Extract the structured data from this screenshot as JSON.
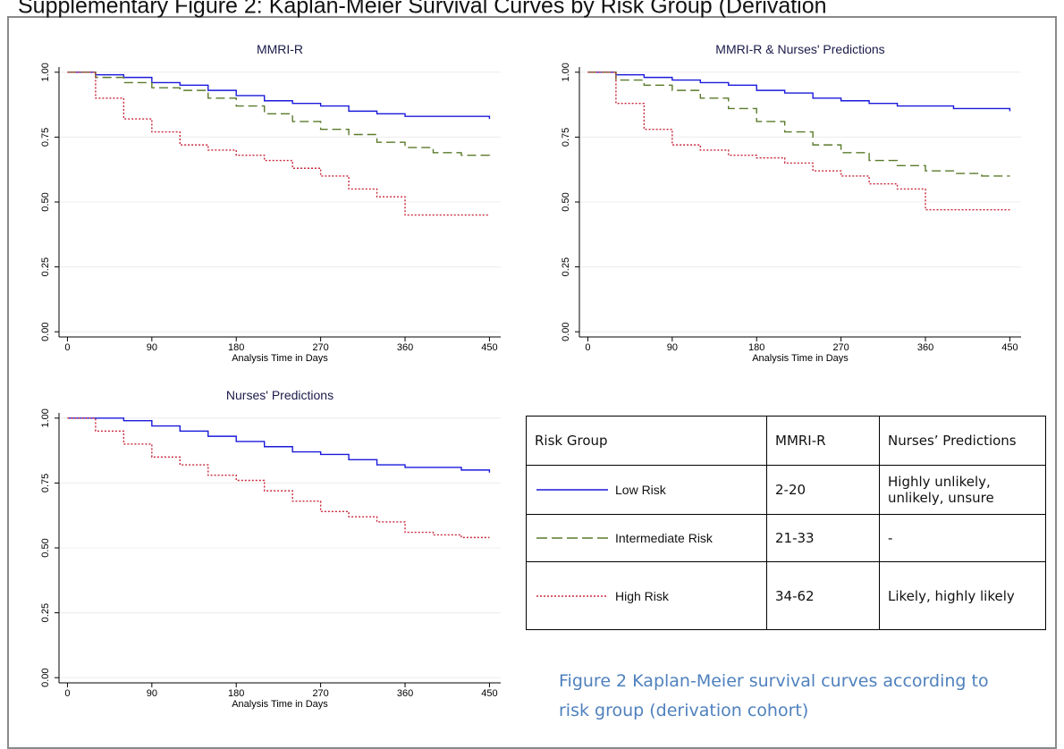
{
  "title": "Supplementary Figure 2: Kaplan-Meier Survival Curves by Risk Group (Derivation",
  "chart_data": [
    {
      "type": "line",
      "step": true,
      "title": "MMRI-R",
      "xlabel": "Analysis Time in Days",
      "x": [
        0,
        30,
        60,
        90,
        120,
        150,
        180,
        210,
        240,
        270,
        300,
        330,
        360,
        390,
        420,
        450
      ],
      "xlim": [
        -9,
        462
      ],
      "xticks": [
        0,
        90,
        180,
        270,
        360,
        450
      ],
      "ylim": [
        -0.02,
        1.02
      ],
      "yticks": [
        {
          "value": 0,
          "label": "0.00"
        },
        {
          "value": 0.25,
          "label": "0.25"
        },
        {
          "value": 0.5,
          "label": "0.50"
        },
        {
          "value": 0.75,
          "label": "0.75"
        },
        {
          "value": 1,
          "label": "1.00"
        }
      ],
      "grid": true,
      "series": [
        {
          "color": "#1a1adb",
          "dash": "solid",
          "values": [
            1,
            0.99,
            0.98,
            0.96,
            0.95,
            0.93,
            0.91,
            0.89,
            0.88,
            0.87,
            0.85,
            0.84,
            0.83,
            0.83,
            0.83,
            0.82
          ]
        },
        {
          "color": "#5a7a2a",
          "dash": "dashed",
          "values": [
            1,
            0.98,
            0.96,
            0.94,
            0.93,
            0.9,
            0.87,
            0.84,
            0.81,
            0.78,
            0.76,
            0.73,
            0.71,
            0.69,
            0.68,
            0.675
          ]
        },
        {
          "color": "#c8283c",
          "dash": "dotted",
          "values": [
            1,
            0.9,
            0.82,
            0.77,
            0.72,
            0.7,
            0.68,
            0.66,
            0.63,
            0.6,
            0.55,
            0.52,
            0.45,
            0.45,
            0.45,
            0.45
          ]
        }
      ]
    },
    {
      "type": "line",
      "step": true,
      "title": "MMRI-R & Nurses' Predictions",
      "xlabel": "Analysis Time in Days",
      "x": [
        0,
        30,
        60,
        90,
        120,
        150,
        180,
        210,
        240,
        270,
        300,
        330,
        360,
        390,
        420,
        450
      ],
      "xlim": [
        -9,
        462
      ],
      "xticks": [
        0,
        90,
        180,
        270,
        360,
        450
      ],
      "ylim": [
        -0.02,
        1.02
      ],
      "yticks": [
        {
          "value": 0,
          "label": "0.00"
        },
        {
          "value": 0.25,
          "label": "0.25"
        },
        {
          "value": 0.5,
          "label": "0.50"
        },
        {
          "value": 0.75,
          "label": "0.75"
        },
        {
          "value": 1,
          "label": "1.00"
        }
      ],
      "grid": true,
      "series": [
        {
          "color": "#1a1adb",
          "dash": "solid",
          "values": [
            1,
            0.99,
            0.98,
            0.97,
            0.96,
            0.95,
            0.93,
            0.92,
            0.9,
            0.89,
            0.88,
            0.87,
            0.87,
            0.86,
            0.86,
            0.85
          ]
        },
        {
          "color": "#5a7a2a",
          "dash": "dashed",
          "values": [
            1,
            0.97,
            0.95,
            0.93,
            0.9,
            0.86,
            0.81,
            0.77,
            0.72,
            0.69,
            0.66,
            0.64,
            0.62,
            0.61,
            0.6,
            0.6
          ]
        },
        {
          "color": "#c8283c",
          "dash": "dotted",
          "values": [
            1,
            0.88,
            0.78,
            0.72,
            0.7,
            0.68,
            0.67,
            0.65,
            0.62,
            0.6,
            0.57,
            0.55,
            0.47,
            0.47,
            0.47,
            0.47
          ]
        }
      ]
    },
    {
      "type": "line",
      "step": true,
      "title": "Nurses' Predictions",
      "xlabel": "Analysis Time in Days",
      "x": [
        0,
        30,
        60,
        90,
        120,
        150,
        180,
        210,
        240,
        270,
        300,
        330,
        360,
        390,
        420,
        450
      ],
      "xlim": [
        -9,
        462
      ],
      "xticks": [
        0,
        90,
        180,
        270,
        360,
        450
      ],
      "ylim": [
        -0.02,
        1.02
      ],
      "yticks": [
        {
          "value": 0,
          "label": "0.00"
        },
        {
          "value": 0.25,
          "label": "0.25"
        },
        {
          "value": 0.5,
          "label": "0.50"
        },
        {
          "value": 0.75,
          "label": "0.75"
        },
        {
          "value": 1,
          "label": "1.00"
        }
      ],
      "grid": true,
      "series": [
        {
          "color": "#1a1adb",
          "dash": "solid",
          "values": [
            1,
            1,
            0.99,
            0.97,
            0.95,
            0.93,
            0.91,
            0.89,
            0.87,
            0.86,
            0.84,
            0.82,
            0.81,
            0.81,
            0.8,
            0.79
          ]
        },
        {
          "color": "#c8283c",
          "dash": "dotted",
          "values": [
            1,
            0.95,
            0.9,
            0.85,
            0.82,
            0.78,
            0.76,
            0.72,
            0.68,
            0.64,
            0.62,
            0.6,
            0.56,
            0.55,
            0.54,
            0.54
          ]
        }
      ]
    }
  ],
  "table": {
    "header": [
      "Risk Group",
      "MMRI-R",
      "Nurses’ Predictions"
    ],
    "rows": [
      [
        "Low Risk",
        "2-20",
        "Highly unlikely, unlikely, unsure"
      ],
      [
        "Intermediate Risk",
        "21-33",
        "-"
      ],
      [
        "High Risk",
        "34-62",
        "Likely, highly likely"
      ]
    ]
  },
  "caption": [
    "Figure 2 Kaplan-Meier survival curves according to",
    "risk group (derivation cohort)"
  ]
}
